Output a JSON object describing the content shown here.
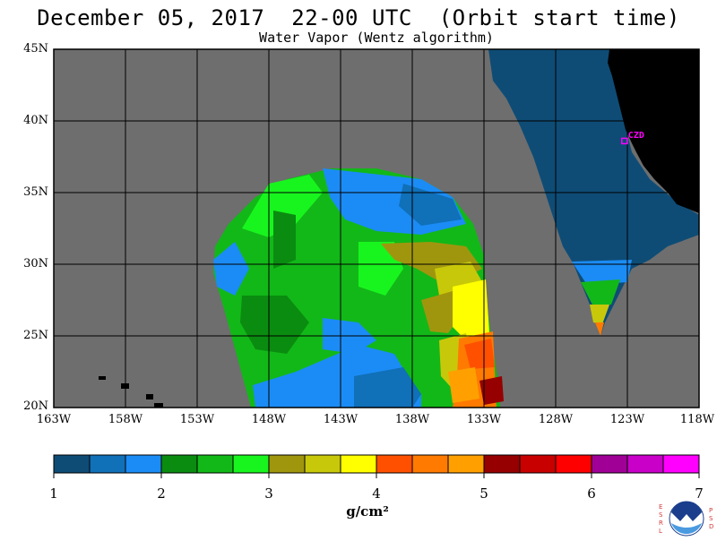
{
  "header": {
    "title": "December 05, 2017  22-00 UTC  (Orbit start time)",
    "subtitle": "Water Vapor (Wentz algorithm)"
  },
  "map": {
    "lat_range": [
      20,
      45
    ],
    "lon_range": [
      -163,
      -118
    ],
    "lat_ticks": [
      "45N",
      "40N",
      "35N",
      "30N",
      "25N",
      "20N"
    ],
    "lat_values": [
      45,
      40,
      35,
      30,
      25,
      20
    ],
    "lon_ticks": [
      "163W",
      "158W",
      "153W",
      "148W",
      "143W",
      "138W",
      "133W",
      "128W",
      "123W",
      "118W"
    ],
    "lon_values": [
      -163,
      -158,
      -153,
      -148,
      -143,
      -138,
      -133,
      -128,
      -123,
      -118
    ],
    "grid": true,
    "marker": {
      "label": "CZD",
      "lat": 38.6,
      "lon": -123.2,
      "color": "#ff00ff"
    },
    "background_color": "#6e6e6e",
    "land_color": "#000000"
  },
  "colorbar": {
    "tick_labels": [
      "1",
      "2",
      "3",
      "4",
      "5",
      "6",
      "7"
    ],
    "units": "g/cm²",
    "colors": [
      "#0e4c76",
      "#1070b8",
      "#1b8cf5",
      "#0a8c10",
      "#12b818",
      "#18f51e",
      "#a0960e",
      "#c8c80a",
      "#ffff00",
      "#ff5000",
      "#ff7a00",
      "#ffa000",
      "#960000",
      "#c80000",
      "#ff0000",
      "#a00096",
      "#c800c8",
      "#ff00ff"
    ]
  },
  "logo": {
    "left_letters": [
      "E",
      "S",
      "R",
      "L"
    ],
    "right_letters": [
      "P",
      "S",
      "D"
    ]
  }
}
